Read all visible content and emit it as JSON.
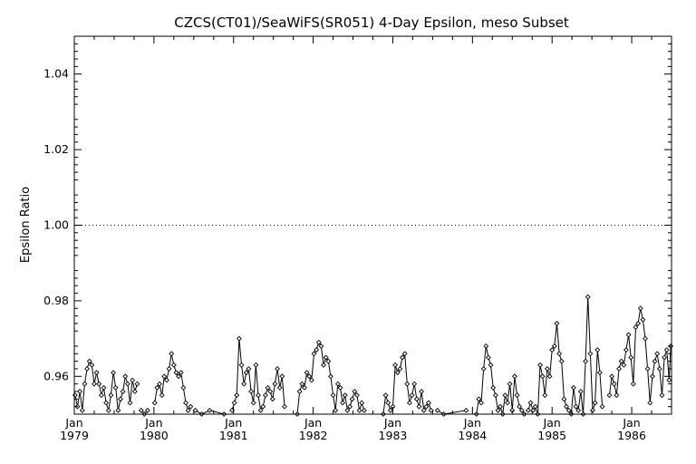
{
  "chart_data": {
    "type": "line",
    "title": "CZCS(CT01)/SeaWiFS(SR051) 4-Day Epsilon, meso Subset",
    "xlabel": "",
    "ylabel": "Epsilon Ratio",
    "xlim": [
      1979.0,
      1986.5
    ],
    "ylim": [
      0.95,
      1.05
    ],
    "reference_line": {
      "y": 1.0,
      "style": "dotted"
    },
    "grid": false,
    "marker": "diamond",
    "y_ticks": [
      {
        "value": 0.96,
        "label": "0.96"
      },
      {
        "value": 0.98,
        "label": "0.98"
      },
      {
        "value": 1.0,
        "label": "1.00"
      },
      {
        "value": 1.02,
        "label": "1.02"
      },
      {
        "value": 1.04,
        "label": "1.04"
      }
    ],
    "x_ticks": [
      {
        "value": 1979,
        "month": "Jan",
        "year": "1979"
      },
      {
        "value": 1980,
        "month": "Jan",
        "year": "1980"
      },
      {
        "value": 1981,
        "month": "Jan",
        "year": "1981"
      },
      {
        "value": 1982,
        "month": "Jan",
        "year": "1982"
      },
      {
        "value": 1983,
        "month": "Jan",
        "year": "1983"
      },
      {
        "value": 1984,
        "month": "Jan",
        "year": "1984"
      },
      {
        "value": 1985,
        "month": "Jan",
        "year": "1985"
      },
      {
        "value": 1986,
        "month": "Jan",
        "year": "1986"
      }
    ],
    "segments": [
      {
        "x": [
          1979.01,
          1979.04,
          1979.07,
          1979.1,
          1979.13,
          1979.16,
          1979.19,
          1979.22,
          1979.25,
          1979.28,
          1979.31,
          1979.34,
          1979.37,
          1979.4,
          1979.43,
          1979.46,
          1979.49,
          1979.52,
          1979.55,
          1979.58,
          1979.61,
          1979.64,
          1979.67,
          1979.7,
          1979.73,
          1979.76,
          1979.79
        ],
        "y": [
          0.955,
          0.952,
          0.956,
          0.951,
          0.958,
          0.962,
          0.964,
          0.963,
          0.958,
          0.961,
          0.958,
          0.955,
          0.957,
          0.953,
          0.951,
          0.955,
          0.961,
          0.957,
          0.951,
          0.954,
          0.956,
          0.96,
          0.958,
          0.953,
          0.959,
          0.956,
          0.958
        ]
      },
      {
        "x": [
          1979.84,
          1979.88,
          1979.92
        ],
        "y": [
          0.951,
          0.95,
          0.951
        ]
      },
      {
        "x": [
          1980.01,
          1980.04,
          1980.07,
          1980.1,
          1980.13,
          1980.16,
          1980.19,
          1980.22,
          1980.25,
          1980.28,
          1980.31,
          1980.34,
          1980.37,
          1980.4,
          1980.43,
          1980.46
        ],
        "y": [
          0.953,
          0.957,
          0.958,
          0.955,
          0.96,
          0.959,
          0.962,
          0.966,
          0.963,
          0.961,
          0.96,
          0.961,
          0.957,
          0.953,
          0.951,
          0.952
        ]
      },
      {
        "x": [
          1980.52,
          1980.6,
          1980.7,
          1980.88
        ],
        "y": [
          0.951,
          0.95,
          0.951,
          0.95
        ]
      },
      {
        "x": [
          1980.98,
          1981.01,
          1981.04,
          1981.07,
          1981.1,
          1981.13,
          1981.16,
          1981.19,
          1981.22,
          1981.25,
          1981.28,
          1981.31,
          1981.34,
          1981.37,
          1981.4,
          1981.43,
          1981.46,
          1981.49,
          1981.52,
          1981.55,
          1981.58,
          1981.61,
          1981.64
        ],
        "y": [
          0.951,
          0.953,
          0.955,
          0.97,
          0.963,
          0.958,
          0.961,
          0.962,
          0.956,
          0.953,
          0.963,
          0.955,
          0.951,
          0.952,
          0.955,
          0.957,
          0.956,
          0.954,
          0.958,
          0.962,
          0.957,
          0.96,
          0.952
        ]
      },
      {
        "x": [
          1981.8,
          1981.83,
          1981.86,
          1981.89,
          1981.92,
          1981.95,
          1981.98,
          1982.01,
          1982.04,
          1982.07,
          1982.1,
          1982.13,
          1982.16,
          1982.19,
          1982.22,
          1982.25,
          1982.28,
          1982.31,
          1982.34,
          1982.37,
          1982.4,
          1982.43,
          1982.46,
          1982.49,
          1982.52,
          1982.55,
          1982.58,
          1982.61,
          1982.64
        ],
        "y": [
          0.95,
          0.956,
          0.958,
          0.957,
          0.961,
          0.96,
          0.959,
          0.966,
          0.967,
          0.969,
          0.968,
          0.963,
          0.965,
          0.964,
          0.96,
          0.955,
          0.951,
          0.958,
          0.957,
          0.953,
          0.955,
          0.951,
          0.952,
          0.954,
          0.956,
          0.955,
          0.951,
          0.953,
          0.951
        ]
      },
      {
        "x": [
          1982.88,
          1982.91,
          1982.94,
          1982.97,
          1983.0,
          1983.03,
          1983.06,
          1983.09,
          1983.12,
          1983.15,
          1983.18,
          1983.21,
          1983.24,
          1983.27,
          1983.3,
          1983.33,
          1983.36,
          1983.39,
          1983.42,
          1983.45,
          1983.48
        ],
        "y": [
          0.95,
          0.955,
          0.953,
          0.951,
          0.952,
          0.963,
          0.961,
          0.962,
          0.965,
          0.966,
          0.958,
          0.953,
          0.955,
          0.958,
          0.954,
          0.952,
          0.956,
          0.951,
          0.952,
          0.953,
          0.951
        ]
      },
      {
        "x": [
          1983.56,
          1983.64,
          1983.92
        ],
        "y": [
          0.951,
          0.95,
          0.951
        ]
      },
      {
        "x": [
          1984.05,
          1984.08,
          1984.11,
          1984.14,
          1984.17,
          1984.2,
          1984.23,
          1984.26,
          1984.29,
          1984.32,
          1984.35,
          1984.38,
          1984.41,
          1984.44,
          1984.47,
          1984.5,
          1984.53,
          1984.56,
          1984.59,
          1984.62,
          1984.65
        ],
        "y": [
          0.95,
          0.954,
          0.953,
          0.962,
          0.968,
          0.965,
          0.963,
          0.957,
          0.955,
          0.951,
          0.952,
          0.95,
          0.955,
          0.953,
          0.958,
          0.951,
          0.96,
          0.955,
          0.952,
          0.951,
          0.95
        ]
      },
      {
        "x": [
          1984.7,
          1984.73,
          1984.76,
          1984.79,
          1984.82,
          1984.85,
          1984.88,
          1984.91,
          1984.94,
          1984.97,
          1985.0,
          1985.03,
          1985.06,
          1985.09,
          1985.12,
          1985.15,
          1985.18,
          1985.21,
          1985.24,
          1985.27,
          1985.3,
          1985.33,
          1985.36,
          1985.39,
          1985.42,
          1985.45,
          1985.48,
          1985.51,
          1985.54,
          1985.57,
          1985.6,
          1985.63
        ],
        "y": [
          0.951,
          0.953,
          0.951,
          0.952,
          0.95,
          0.963,
          0.96,
          0.955,
          0.962,
          0.96,
          0.967,
          0.968,
          0.974,
          0.966,
          0.964,
          0.954,
          0.952,
          0.951,
          0.95,
          0.957,
          0.952,
          0.951,
          0.956,
          0.95,
          0.964,
          0.981,
          0.966,
          0.951,
          0.953,
          0.967,
          0.961,
          0.952
        ]
      },
      {
        "x": [
          1985.72,
          1985.75,
          1985.78,
          1985.81,
          1985.84,
          1985.87,
          1985.9,
          1985.93,
          1985.96,
          1985.99,
          1986.02,
          1986.05,
          1986.08,
          1986.11,
          1986.14,
          1986.17,
          1986.2,
          1986.23,
          1986.26,
          1986.29,
          1986.32,
          1986.35,
          1986.38,
          1986.41,
          1986.44,
          1986.47,
          1986.49
        ],
        "y": [
          0.955,
          0.96,
          0.958,
          0.955,
          0.962,
          0.964,
          0.963,
          0.967,
          0.971,
          0.965,
          0.958,
          0.973,
          0.974,
          0.978,
          0.975,
          0.97,
          0.962,
          0.953,
          0.96,
          0.964,
          0.966,
          0.962,
          0.955,
          0.965,
          0.967,
          0.959,
          0.968
        ]
      }
    ]
  }
}
